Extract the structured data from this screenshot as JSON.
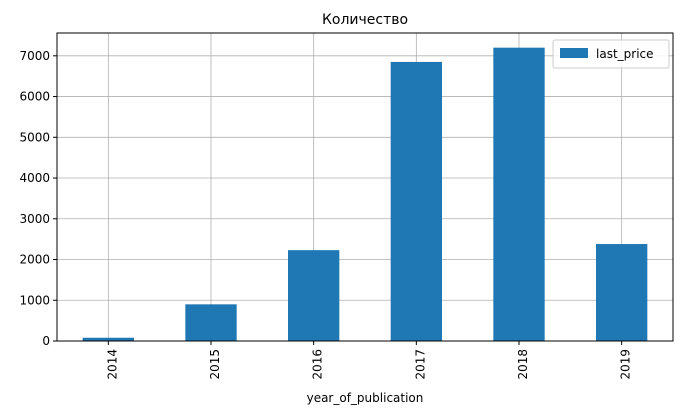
{
  "chart_data": {
    "type": "bar",
    "title": "Количество",
    "xlabel": "year_of_publication",
    "ylabel": "",
    "categories": [
      "2014",
      "2015",
      "2016",
      "2017",
      "2018",
      "2019"
    ],
    "series": [
      {
        "name": "last_price",
        "values": [
          80,
          900,
          2230,
          6850,
          7200,
          2380
        ],
        "color": "#1f77b4"
      }
    ],
    "ylim": [
      0,
      7560
    ],
    "yticks": [
      0,
      1000,
      2000,
      3000,
      4000,
      5000,
      6000,
      7000
    ],
    "grid": true,
    "legend": "top-right"
  }
}
